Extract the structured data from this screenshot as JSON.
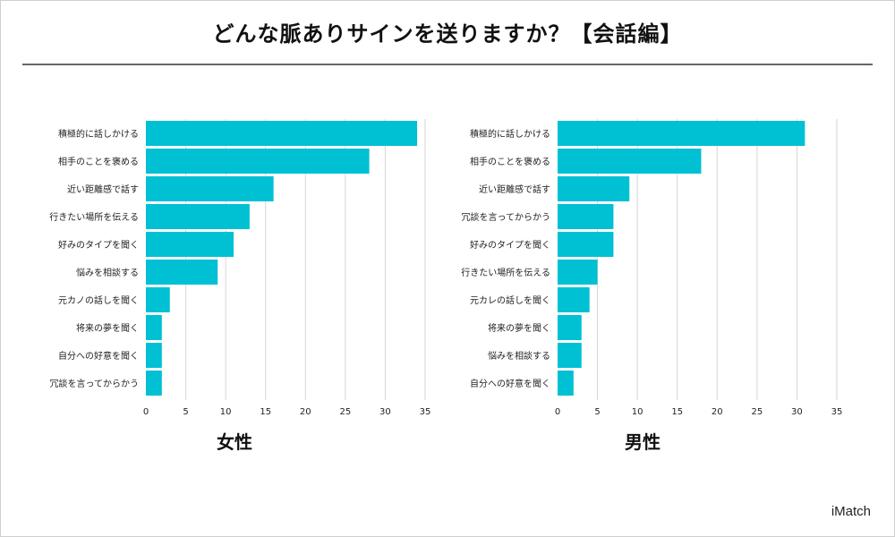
{
  "title": "どんな脈ありサインを送りますか？【会話編】",
  "brand": "iMatch",
  "colors": {
    "bar": "#00c0d4",
    "grid": "#d6d6d6",
    "text": "#222222"
  },
  "chart_data": [
    {
      "type": "bar",
      "orientation": "horizontal",
      "title": "女性",
      "categories": [
        "積極的に話しかける",
        "相手のことを褒める",
        "近い距離感で話す",
        "行きたい場所を伝える",
        "好みのタイプを聞く",
        "悩みを相談する",
        "元カノの話しを聞く",
        "将来の夢を聞く",
        "自分への好意を聞く",
        "冗談を言ってからかう"
      ],
      "values": [
        34,
        28,
        16,
        13,
        11,
        9,
        3,
        2,
        2,
        2
      ],
      "xlim": [
        0,
        35
      ],
      "xticks": [
        0,
        5,
        10,
        15,
        20,
        25,
        30,
        35
      ],
      "grid": true
    },
    {
      "type": "bar",
      "orientation": "horizontal",
      "title": "男性",
      "categories": [
        "積極的に話しかける",
        "相手のことを褒める",
        "近い距離感で話す",
        "冗談を言ってからかう",
        "好みのタイプを聞く",
        "行きたい場所を伝える",
        "元カレの話しを聞く",
        "将来の夢を聞く",
        "悩みを相談する",
        "自分への好意を聞く"
      ],
      "values": [
        31,
        18,
        9,
        7,
        7,
        5,
        4,
        3,
        3,
        2
      ],
      "xlim": [
        0,
        35
      ],
      "xticks": [
        0,
        5,
        10,
        15,
        20,
        25,
        30,
        35
      ],
      "grid": true
    }
  ]
}
